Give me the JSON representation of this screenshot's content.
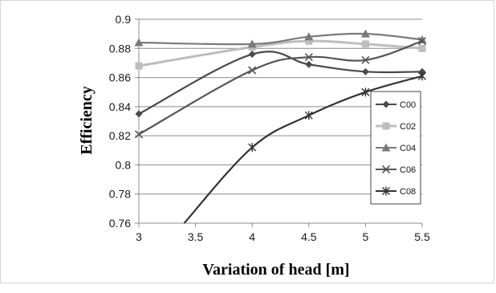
{
  "chart_data": {
    "type": "line",
    "title": "",
    "xlabel": "Variation of head  [m]",
    "ylabel": "Efficiency",
    "x": [
      3,
      3.5,
      4,
      4.5,
      5,
      5.5
    ],
    "x_ticks": [
      "3",
      "3.5",
      "4",
      "4.5",
      "5",
      "5.5"
    ],
    "y_ticks": [
      "0.76",
      "0.78",
      "0.8",
      "0.82",
      "0.84",
      "0.86",
      "0.88",
      "0.9"
    ],
    "xlim": [
      3,
      5.5
    ],
    "ylim": [
      0.76,
      0.9
    ],
    "grid": "horizontal",
    "legend_position": "right",
    "series": [
      {
        "name": "C00",
        "color": "#4a4a4a",
        "marker": "diamond",
        "x": [
          3,
          4,
          4.5,
          5,
          5.5
        ],
        "values": [
          0.835,
          0.876,
          0.869,
          0.864,
          0.864
        ]
      },
      {
        "name": "C02",
        "color": "#bdbdbd",
        "marker": "square",
        "x": [
          3,
          4,
          4.5,
          5,
          5.5
        ],
        "values": [
          0.868,
          0.881,
          0.885,
          0.883,
          0.88
        ]
      },
      {
        "name": "C04",
        "color": "#7a7a7a",
        "marker": "triangle",
        "x": [
          3,
          4,
          4.5,
          5,
          5.5
        ],
        "values": [
          0.884,
          0.883,
          0.888,
          0.89,
          0.886
        ]
      },
      {
        "name": "C06",
        "color": "#555555",
        "marker": "x",
        "x": [
          3,
          4,
          4.5,
          5,
          5.5
        ],
        "values": [
          0.821,
          0.865,
          0.874,
          0.872,
          0.885
        ]
      },
      {
        "name": "C08",
        "color": "#333333",
        "marker": "star",
        "x": [
          3.4,
          4,
          4.5,
          5,
          5.5
        ],
        "values": [
          0.76,
          0.812,
          0.834,
          0.85,
          0.861
        ]
      }
    ]
  }
}
